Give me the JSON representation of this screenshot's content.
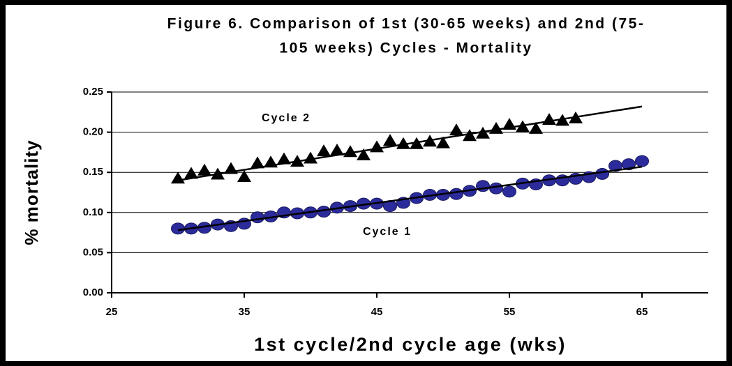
{
  "chart_data": {
    "type": "scatter",
    "title": [
      "Figure 6.  Comparison of 1st (30-65 weeks) and 2nd (75-",
      "105 weeks) Cycles - Mortality"
    ],
    "x_label": "1st cycle/2nd cycle age (wks)",
    "y_label": "% mortality",
    "xlim": [
      25,
      70
    ],
    "xticks": [
      25,
      35,
      45,
      55,
      65
    ],
    "ylim": [
      0,
      0.25
    ],
    "yticks": [
      {
        "value": 0,
        "label": "0.00"
      },
      {
        "value": 0.05,
        "label": "0.05"
      },
      {
        "value": 0.1,
        "label": "0.10"
      },
      {
        "value": 0.15,
        "label": "0.15"
      },
      {
        "value": 0.2,
        "label": "0.20"
      },
      {
        "value": 0.25,
        "label": "0.25"
      }
    ],
    "grid": true,
    "series": [
      {
        "name": "Cycle 1",
        "color": "#2b2b9b",
        "marker": "circle",
        "x": [
          30,
          31,
          32,
          33,
          34,
          35,
          36,
          37,
          38,
          39,
          40,
          41,
          42,
          43,
          44,
          45,
          46,
          47,
          48,
          49,
          50,
          51,
          52,
          53,
          54,
          55,
          56,
          57,
          58,
          59,
          60,
          61,
          62,
          63,
          64,
          65
        ],
        "values": [
          0.08,
          0.08,
          0.081,
          0.085,
          0.083,
          0.086,
          0.094,
          0.095,
          0.1,
          0.099,
          0.1,
          0.101,
          0.106,
          0.108,
          0.111,
          0.111,
          0.108,
          0.112,
          0.118,
          0.122,
          0.122,
          0.123,
          0.127,
          0.133,
          0.13,
          0.126,
          0.136,
          0.135,
          0.14,
          0.14,
          0.142,
          0.144,
          0.148,
          0.158,
          0.16,
          0.164
        ],
        "trend_x": [
          30,
          65
        ],
        "trend": [
          0.078,
          0.157
        ]
      },
      {
        "name": "Cycle 2",
        "color": "#000000",
        "marker": "triangle",
        "x": [
          30,
          31,
          32,
          33,
          34,
          35,
          36,
          37,
          38,
          39,
          40,
          41,
          42,
          43,
          44,
          45,
          46,
          47,
          48,
          49,
          50,
          51,
          52,
          53,
          54,
          55,
          56,
          57,
          58,
          59,
          60
        ],
        "values": [
          0.143,
          0.149,
          0.153,
          0.148,
          0.155,
          0.145,
          0.162,
          0.163,
          0.167,
          0.164,
          0.168,
          0.177,
          0.178,
          0.176,
          0.172,
          0.182,
          0.19,
          0.186,
          0.186,
          0.189,
          0.187,
          0.203,
          0.196,
          0.199,
          0.205,
          0.21,
          0.207,
          0.205,
          0.216,
          0.215,
          0.218
        ],
        "trend_x": [
          30,
          65
        ],
        "trend": [
          0.14,
          0.232
        ]
      }
    ]
  }
}
